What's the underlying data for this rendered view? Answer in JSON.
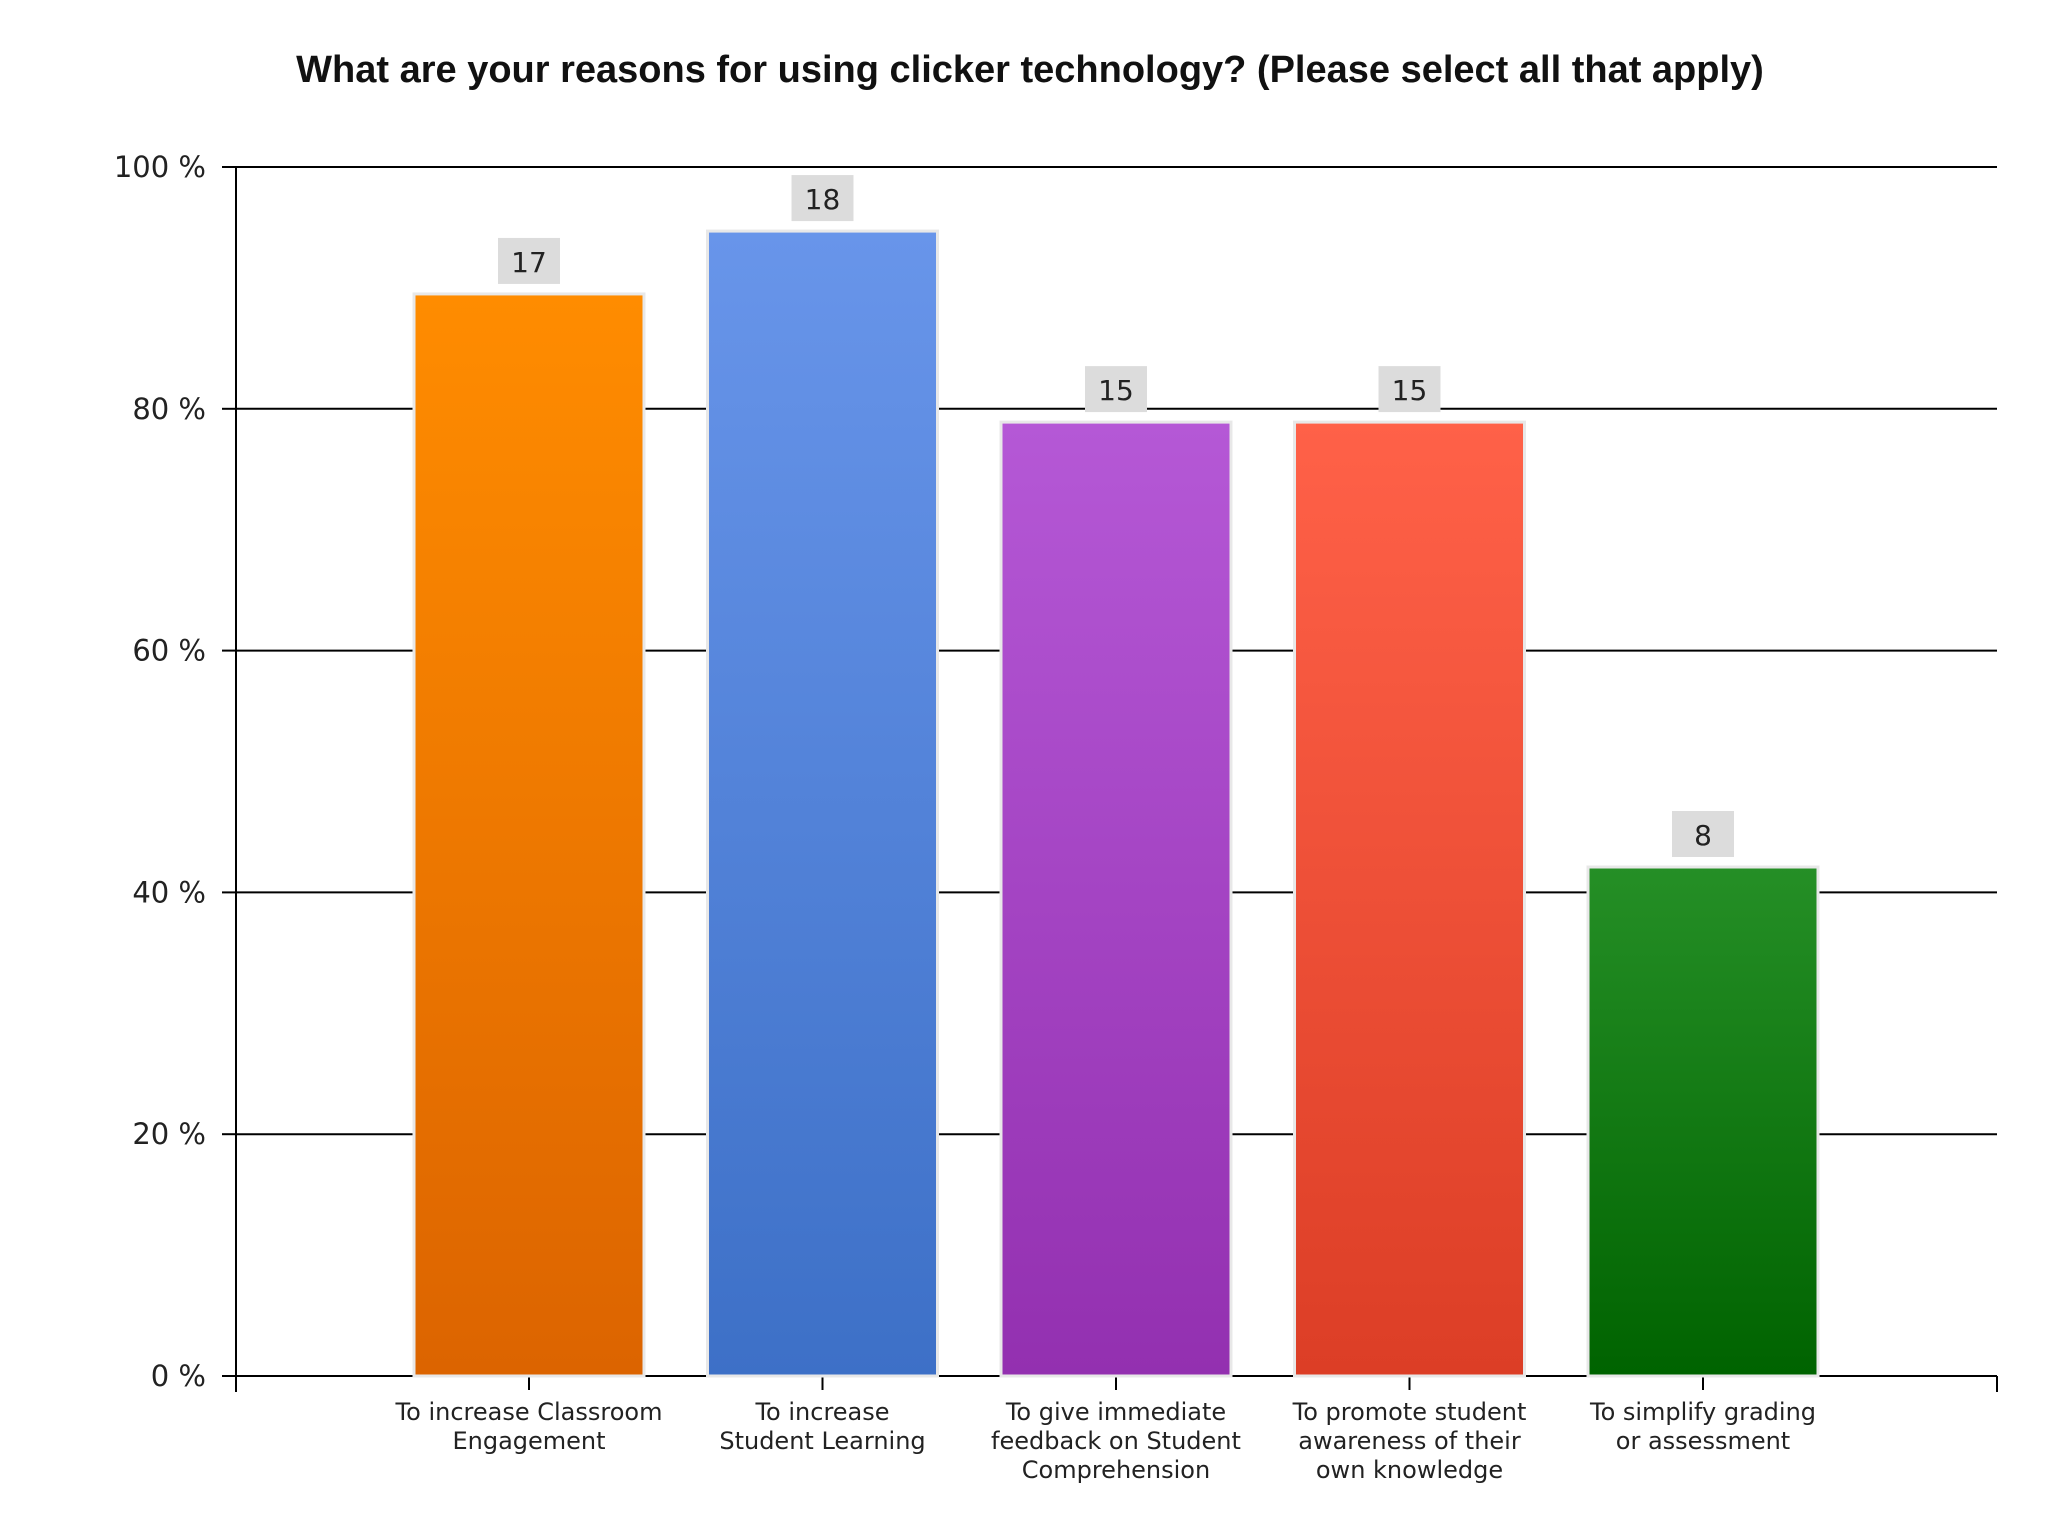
{
  "chart_data": {
    "type": "bar",
    "title": "What are your reasons for using clicker technology? (Please select all that apply)",
    "xlabel": "",
    "ylabel": "",
    "ylim": [
      0,
      100
    ],
    "y_ticks": [
      "0 %",
      "20 %",
      "40 %",
      "60 %",
      "80 %",
      "100 %"
    ],
    "y_tick_values": [
      0,
      20,
      40,
      60,
      80,
      100
    ],
    "grid": true,
    "categories": [
      "To increase Classroom Engagement",
      "To increase Student Learning",
      "To give immediate feedback on Student Comprehension",
      "To promote student awareness of their own knowledge",
      "To simplify grading or assessment"
    ],
    "category_lines": [
      [
        "To increase Classroom",
        "Engagement"
      ],
      [
        "To increase",
        "Student Learning"
      ],
      [
        "To give immediate",
        "feedback on Student",
        "Comprehension"
      ],
      [
        "To promote student",
        "awareness of their",
        "own knowledge"
      ],
      [
        "To simplify grading",
        "or assessment"
      ]
    ],
    "values": [
      89.5,
      94.7,
      78.9,
      78.9,
      42.1
    ],
    "counts": [
      "17",
      "18",
      "15",
      "15",
      "8"
    ],
    "colors": [
      [
        "#ff8c00",
        "#dc6400"
      ],
      [
        "#6895ea",
        "#3d70c7"
      ],
      [
        "#b558d6",
        "#9330b0"
      ],
      [
        "#ff6148",
        "#dc3e26"
      ],
      [
        "#258f26",
        "#006300"
      ]
    ]
  }
}
